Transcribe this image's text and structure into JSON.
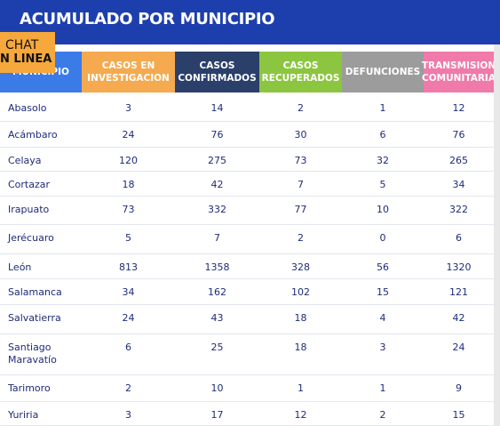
{
  "header": {
    "title": "ACUMULADO POR MUNICIPIO"
  },
  "chat": {
    "line1": "CHAT",
    "line2": "N LINEA"
  },
  "table": {
    "columns": [
      "MUNICIPIO",
      "CASOS EN INVESTIGACION",
      "CASOS CONFIRMADOS",
      "CASOS RECUPERADOS",
      "DEFUNCIONES",
      "TRANSMISION COMUNITARIA"
    ],
    "rows": [
      [
        "Abasolo",
        3,
        14,
        2,
        1,
        12
      ],
      [
        "Acámbaro",
        24,
        76,
        30,
        6,
        76
      ],
      [
        "Celaya",
        120,
        275,
        73,
        32,
        265
      ],
      [
        "Cortazar",
        18,
        42,
        7,
        5,
        34
      ],
      [
        "Irapuato",
        73,
        332,
        77,
        10,
        322
      ],
      [
        "Jerécuaro",
        5,
        7,
        2,
        0,
        6
      ],
      [
        "León",
        813,
        1358,
        328,
        56,
        1320
      ],
      [
        "Salamanca",
        34,
        162,
        102,
        15,
        121
      ],
      [
        "Salvatierra",
        24,
        43,
        18,
        4,
        42
      ],
      [
        "Santiago Maravatío",
        6,
        25,
        18,
        3,
        24
      ],
      [
        "Tarimoro",
        2,
        10,
        1,
        1,
        9
      ],
      [
        "Yuriria",
        3,
        17,
        12,
        2,
        15
      ]
    ]
  }
}
